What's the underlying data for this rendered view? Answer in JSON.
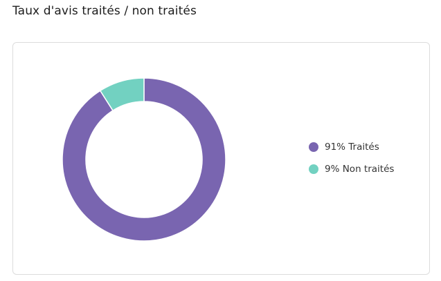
{
  "title": "Taux d'avis traités / non traités",
  "colors": {
    "processed": "#7965b0",
    "unprocessed": "#72d1c1"
  },
  "chart_data": {
    "type": "pie",
    "categories": [
      "Traités",
      "Non traités"
    ],
    "values": [
      91,
      9
    ],
    "title": "",
    "legend_position": "right",
    "legend": [
      "91% Traités",
      "9% Non traités"
    ]
  }
}
